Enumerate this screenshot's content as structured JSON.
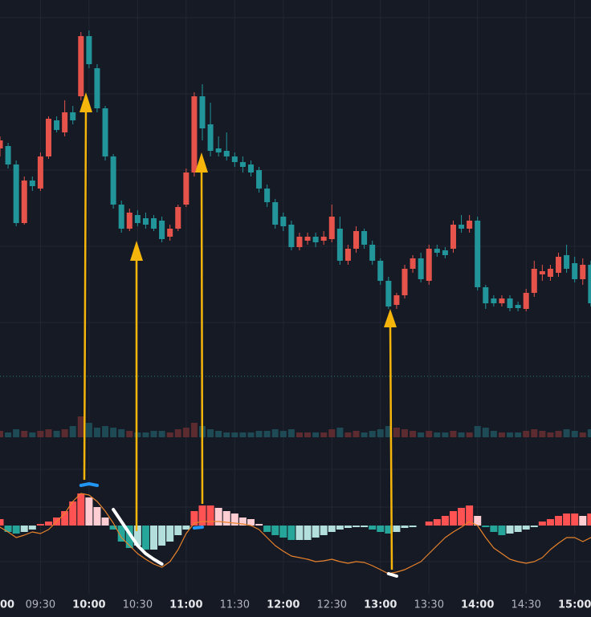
{
  "chart_data": {
    "type": "candlestick",
    "xticks": [
      {
        "value": -1,
        "label": "00"
      },
      {
        "value": 5,
        "label": "09:30"
      },
      {
        "value": 11,
        "label": "10:00"
      },
      {
        "value": 17,
        "label": "10:30"
      },
      {
        "value": 23,
        "label": "11:00"
      },
      {
        "value": 29,
        "label": "11:30"
      },
      {
        "value": 35,
        "label": "12:00"
      },
      {
        "value": 41,
        "label": "12:30"
      },
      {
        "value": 47,
        "label": "13:00"
      },
      {
        "value": 53,
        "label": "13:30"
      },
      {
        "value": 59,
        "label": "14:00"
      },
      {
        "value": 65,
        "label": "14:30"
      },
      {
        "value": 71,
        "label": "15:00"
      }
    ],
    "ylim": [
      30,
      500
    ],
    "up_color": "#e5534b",
    "down_color": "#22959b",
    "open": [
      315,
      318,
      295,
      222,
      275,
      265,
      305,
      350,
      335,
      360,
      380,
      455,
      415,
      365,
      305,
      245,
      215,
      232,
      228,
      228,
      225,
      205,
      215,
      245,
      285,
      380,
      345,
      315,
      312,
      305,
      298,
      295,
      288,
      265,
      248,
      230,
      220,
      192,
      200,
      205,
      200,
      202,
      215,
      175,
      190,
      212,
      195,
      175,
      150,
      120,
      132,
      165,
      178,
      150,
      190,
      188,
      190,
      220,
      215,
      225,
      142,
      128,
      122,
      128,
      120,
      115,
      135,
      158,
      155,
      160,
      182,
      172,
      152,
      170
    ],
    "high": [
      330,
      322,
      300,
      280,
      280,
      310,
      355,
      355,
      375,
      368,
      460,
      462,
      420,
      368,
      308,
      250,
      240,
      238,
      235,
      232,
      230,
      220,
      245,
      290,
      385,
      395,
      372,
      330,
      335,
      310,
      305,
      300,
      292,
      270,
      252,
      235,
      225,
      210,
      210,
      210,
      212,
      245,
      230,
      195,
      218,
      215,
      200,
      178,
      155,
      135,
      170,
      182,
      185,
      195,
      195,
      192,
      225,
      232,
      232,
      230,
      145,
      132,
      132,
      132,
      124,
      140,
      175,
      170,
      170,
      185,
      195,
      180,
      178,
      175
    ],
    "low": [
      305,
      290,
      218,
      220,
      262,
      262,
      302,
      335,
      330,
      345,
      375,
      415,
      360,
      300,
      240,
      210,
      212,
      218,
      215,
      212,
      198,
      200,
      212,
      242,
      280,
      325,
      305,
      305,
      300,
      292,
      285,
      280,
      260,
      242,
      215,
      212,
      188,
      188,
      195,
      192,
      195,
      198,
      170,
      170,
      185,
      190,
      170,
      145,
      115,
      115,
      128,
      160,
      148,
      145,
      180,
      178,
      185,
      210,
      210,
      138,
      115,
      118,
      118,
      112,
      112,
      112,
      130,
      150,
      150,
      155,
      160,
      148,
      145,
      118
    ],
    "close": [
      325,
      295,
      222,
      275,
      268,
      305,
      352,
      338,
      360,
      350,
      455,
      420,
      365,
      305,
      245,
      215,
      235,
      222,
      220,
      215,
      202,
      215,
      242,
      285,
      380,
      340,
      312,
      310,
      305,
      298,
      292,
      285,
      265,
      248,
      220,
      218,
      192,
      205,
      205,
      198,
      205,
      230,
      175,
      190,
      212,
      195,
      175,
      150,
      118,
      132,
      165,
      178,
      152,
      190,
      185,
      182,
      220,
      215,
      225,
      142,
      122,
      122,
      128,
      116,
      116,
      135,
      165,
      162,
      165,
      180,
      165,
      152,
      170,
      122
    ],
    "volume": {
      "ylim": [
        0,
        60
      ],
      "up_color": "#5c2b2f",
      "down_color": "#1d4a55",
      "values": [
        8,
        6,
        10,
        8,
        6,
        8,
        10,
        8,
        10,
        14,
        26,
        18,
        12,
        14,
        12,
        10,
        8,
        6,
        6,
        8,
        8,
        6,
        10,
        12,
        18,
        14,
        10,
        8,
        6,
        6,
        6,
        6,
        8,
        8,
        10,
        8,
        10,
        6,
        6,
        6,
        6,
        10,
        12,
        6,
        8,
        6,
        8,
        10,
        14,
        12,
        10,
        8,
        6,
        8,
        6,
        6,
        8,
        6,
        6,
        14,
        12,
        8,
        6,
        6,
        6,
        8,
        10,
        8,
        6,
        8,
        10,
        8,
        6,
        10
      ]
    },
    "macd": {
      "ylim": [
        -75,
        65
      ],
      "histogram": {
        "colors": {
          "up_rising": "#ff5252",
          "up_falling": "#ffcdd2",
          "down_falling": "#26a69a",
          "down_rising": "#b2dfdb"
        },
        "values": [
          8,
          -8,
          -10,
          -8,
          -5,
          2,
          5,
          10,
          18,
          30,
          40,
          35,
          23,
          10,
          -5,
          -20,
          -28,
          -25,
          -30,
          -30,
          -25,
          -20,
          -12,
          -5,
          18,
          25,
          25,
          22,
          18,
          15,
          10,
          8,
          2,
          -8,
          -12,
          -15,
          -18,
          -18,
          -18,
          -15,
          -12,
          -8,
          -5,
          -3,
          -2,
          -2,
          -5,
          -8,
          -10,
          -8,
          -3,
          -2,
          0,
          5,
          8,
          12,
          18,
          22,
          25,
          12,
          -2,
          -8,
          -12,
          -10,
          -8,
          -5,
          -2,
          5,
          8,
          12,
          15,
          15,
          12,
          15
        ]
      },
      "series": [
        {
          "color": "#e8822a",
          "width": 1.2,
          "values": [
            -2,
            -8,
            -15,
            -12,
            -8,
            -10,
            -5,
            5,
            15,
            30,
            40,
            38,
            30,
            18,
            3,
            -15,
            -25,
            -35,
            -42,
            -48,
            -52,
            -45,
            -30,
            -10,
            3,
            5,
            5,
            5,
            4,
            3,
            2,
            0,
            -5,
            -15,
            -25,
            -32,
            -38,
            -40,
            -42,
            -45,
            -44,
            -42,
            -45,
            -47,
            -45,
            -46,
            -50,
            -55,
            -60,
            -58,
            -55,
            -50,
            -45,
            -35,
            -25,
            -15,
            -8,
            -2,
            5,
            0,
            -15,
            -28,
            -35,
            -42,
            -45,
            -47,
            -45,
            -40,
            -30,
            -22,
            -15,
            -15,
            -20,
            -15
          ]
        },
        {
          "color": "#2196f3",
          "width": 4,
          "values": [
            null,
            null,
            null,
            null,
            null,
            null,
            null,
            null,
            null,
            null,
            50,
            52,
            50,
            null,
            null,
            null,
            null,
            null,
            null,
            null,
            null,
            null,
            null,
            null,
            -3,
            -2,
            null,
            null,
            null,
            null,
            null,
            null,
            null,
            null,
            null,
            null,
            null,
            null,
            null,
            null,
            null,
            null,
            null,
            null,
            null,
            null,
            null,
            null,
            null,
            null,
            null,
            null,
            null,
            null,
            null,
            null,
            null,
            null,
            null,
            null,
            null,
            null,
            null,
            null,
            null,
            null,
            null,
            null,
            null,
            null,
            null,
            null,
            null,
            null
          ]
        },
        {
          "color": "#ffffff",
          "width": 4,
          "values": [
            null,
            null,
            null,
            null,
            null,
            null,
            null,
            null,
            null,
            null,
            null,
            null,
            null,
            null,
            20,
            5,
            -10,
            -25,
            -35,
            -42,
            -48,
            null,
            null,
            null,
            null,
            null,
            null,
            null,
            null,
            null,
            null,
            null,
            null,
            null,
            null,
            null,
            null,
            null,
            null,
            null,
            null,
            null,
            null,
            null,
            null,
            null,
            null,
            null,
            -60,
            -63,
            null,
            null,
            null,
            null,
            null,
            null,
            null,
            null,
            null,
            null,
            null,
            null,
            null,
            null,
            null,
            null,
            null,
            null,
            null,
            null,
            null,
            null,
            null,
            null
          ]
        }
      ]
    }
  }
}
